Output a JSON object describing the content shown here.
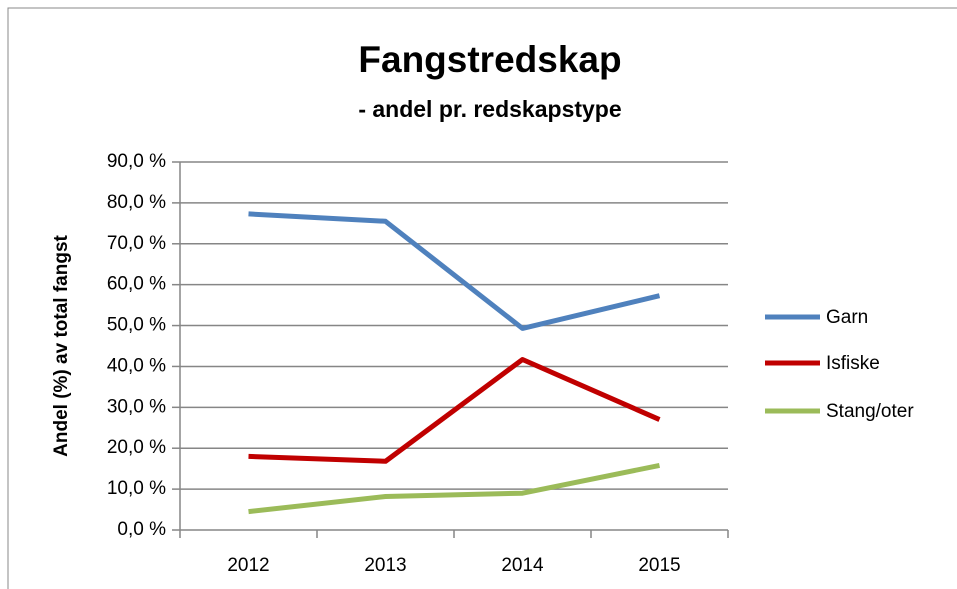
{
  "chart_data": {
    "type": "line",
    "title": "Fangstredskap",
    "subtitle": "- andel pr. redskapstype",
    "y_label": "Andel (%) av total fangst",
    "categories": [
      "2012",
      "2013",
      "2014",
      "2015"
    ],
    "series": [
      {
        "name": "Garn",
        "color": "#4f81bd",
        "values": [
          77.3,
          75.5,
          49.3,
          57.3
        ]
      },
      {
        "name": "Isfiske",
        "color": "#c00000",
        "values": [
          18.0,
          16.8,
          41.7,
          27.0
        ]
      },
      {
        "name": "Stang/oter",
        "color": "#9bbb59",
        "values": [
          4.5,
          8.2,
          9.0,
          15.8
        ]
      }
    ],
    "ylim": [
      0,
      90
    ],
    "yticks": [
      {
        "value": 0,
        "label": "0,0 %"
      },
      {
        "value": 10,
        "label": "10,0 %"
      },
      {
        "value": 20,
        "label": "20,0 %"
      },
      {
        "value": 30,
        "label": "30,0 %"
      },
      {
        "value": 40,
        "label": "40,0 %"
      },
      {
        "value": 50,
        "label": "50,0 %"
      },
      {
        "value": 60,
        "label": "60,0 %"
      },
      {
        "value": 70,
        "label": "70,0 %"
      },
      {
        "value": 80,
        "label": "80,0 %"
      },
      {
        "value": 90,
        "label": "90,0 %"
      }
    ],
    "grid": true,
    "legend": "right"
  }
}
